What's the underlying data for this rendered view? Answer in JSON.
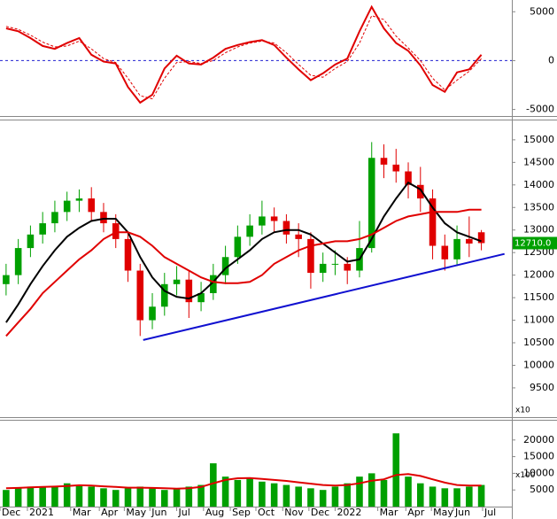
{
  "chart_data": [
    {
      "type": "oscillator",
      "x": [
        1,
        3,
        5,
        7,
        9,
        11,
        13,
        15,
        17,
        19,
        21,
        23,
        25,
        27,
        29,
        31,
        33,
        35,
        37,
        39,
        41,
        43,
        45,
        47,
        49,
        51,
        53,
        55,
        57,
        59,
        61,
        63,
        65,
        67,
        69,
        71,
        73,
        75,
        77,
        79
      ],
      "xlim": [
        0,
        84
      ],
      "ylim": [
        -5490,
        6020
      ],
      "yticks": [
        5000,
        0,
        -5000
      ],
      "zero_line": true,
      "zero_color": "#2020d0",
      "series": [
        {
          "color": "#e00000",
          "dashed": false,
          "values": [
            3300,
            3000,
            2300,
            1500,
            1200,
            1800,
            2300,
            600,
            -100,
            -300,
            -2700,
            -4300,
            -3500,
            -800,
            500,
            -300,
            -400,
            300,
            1200,
            1600,
            1900,
            2100,
            1600,
            300,
            -900,
            -2000,
            -1300,
            -400,
            200,
            3000,
            5500,
            3300,
            1800,
            1000,
            -500,
            -2500,
            -3200,
            -1200,
            -900,
            600
          ]
        },
        {
          "color": "#e00000",
          "dashed": true,
          "values": [
            3500,
            3200,
            2600,
            1900,
            1400,
            1500,
            2000,
            1200,
            200,
            -200,
            -1800,
            -3600,
            -3900,
            -1800,
            -200,
            -100,
            -300,
            0,
            800,
            1400,
            1800,
            2000,
            1800,
            800,
            -400,
            -1500,
            -1700,
            -800,
            -100,
            1800,
            4600,
            4200,
            2500,
            1300,
            0,
            -1800,
            -3000,
            -2000,
            -1100,
            200
          ]
        }
      ]
    },
    {
      "type": "candlestick",
      "x": [
        1,
        3,
        5,
        7,
        9,
        11,
        13,
        15,
        17,
        19,
        21,
        23,
        25,
        27,
        29,
        31,
        33,
        35,
        37,
        39,
        41,
        43,
        45,
        47,
        49,
        51,
        53,
        55,
        57,
        59,
        61,
        63,
        65,
        67,
        69,
        71,
        73,
        75,
        77,
        79
      ],
      "xlim": [
        0,
        84
      ],
      "ylim": [
        8870,
        15410
      ],
      "yticks": [
        15000,
        14500,
        14000,
        13500,
        13000,
        12500,
        12000,
        11500,
        11000,
        10500,
        10000,
        9500
      ],
      "scale_label": "x10",
      "up_color": "#00a000",
      "down_color": "#e00000",
      "open": [
        11800,
        12000,
        12600,
        12900,
        13150,
        13400,
        13650,
        13700,
        13400,
        13150,
        12800,
        12100,
        11000,
        11300,
        11800,
        11900,
        11400,
        11600,
        12000,
        12400,
        12850,
        13100,
        13300,
        13200,
        12900,
        12800,
        12050,
        12250,
        12250,
        12100,
        12600,
        14600,
        14450,
        14300,
        14000,
        13700,
        12650,
        12350,
        12800,
        12950
      ],
      "high": [
        12250,
        12800,
        13100,
        13400,
        13650,
        13850,
        13900,
        13950,
        13600,
        13350,
        12950,
        12250,
        11600,
        12050,
        12200,
        12100,
        11850,
        12250,
        12650,
        13100,
        13350,
        13650,
        13500,
        13350,
        13150,
        12950,
        12500,
        12550,
        12400,
        13200,
        14950,
        14900,
        14800,
        14500,
        14400,
        13900,
        12900,
        13100,
        13300,
        13000
      ],
      "low": [
        11550,
        11800,
        12400,
        12700,
        12950,
        13200,
        13400,
        13200,
        12950,
        12600,
        11850,
        10650,
        10800,
        11100,
        11550,
        11050,
        11200,
        11450,
        11800,
        12250,
        12650,
        12900,
        12950,
        12700,
        12400,
        11700,
        11850,
        12000,
        11800,
        11950,
        12500,
        14150,
        14050,
        13700,
        13400,
        12350,
        12100,
        12200,
        12400,
        12550
      ],
      "close": [
        12000,
        12600,
        12900,
        13150,
        13400,
        13650,
        13700,
        13400,
        13150,
        12800,
        12100,
        11000,
        11300,
        11800,
        11900,
        11400,
        11600,
        12000,
        12400,
        12850,
        13100,
        13300,
        13200,
        12900,
        12800,
        12050,
        12250,
        12250,
        12100,
        12600,
        14600,
        14450,
        14300,
        14000,
        13700,
        12650,
        12350,
        12800,
        12700,
        12710
      ],
      "lines": [
        {
          "color": "#000000",
          "values": [
            10950,
            11350,
            11800,
            12200,
            12550,
            12850,
            13050,
            13200,
            13250,
            13250,
            12950,
            12400,
            11950,
            11650,
            11520,
            11480,
            11600,
            11850,
            12150,
            12350,
            12550,
            12800,
            12950,
            13000,
            13000,
            12900,
            12700,
            12500,
            12300,
            12350,
            12800,
            13300,
            13700,
            14050,
            13900,
            13500,
            13150,
            12950,
            12850,
            12750
          ]
        },
        {
          "color": "#e00000",
          "values": [
            10650,
            10950,
            11250,
            11600,
            11850,
            12100,
            12350,
            12550,
            12800,
            12950,
            12950,
            12850,
            12650,
            12400,
            12250,
            12100,
            11950,
            11850,
            11820,
            11820,
            11850,
            12000,
            12250,
            12400,
            12550,
            12650,
            12700,
            12750,
            12750,
            12800,
            12900,
            13050,
            13200,
            13300,
            13350,
            13400,
            13400,
            13400,
            13450,
            13450
          ]
        }
      ],
      "trendline": {
        "color": "#1010d0",
        "x": [
          23.5,
          82.8
        ],
        "values": [
          10560,
          12470
        ]
      },
      "last_price": {
        "value": 12710,
        "label": "12710.0",
        "color": "#00a000"
      }
    },
    {
      "type": "volume",
      "x": [
        1,
        3,
        5,
        7,
        9,
        11,
        13,
        15,
        17,
        19,
        21,
        23,
        25,
        27,
        29,
        31,
        33,
        35,
        37,
        39,
        41,
        43,
        45,
        47,
        49,
        51,
        53,
        55,
        57,
        59,
        61,
        63,
        65,
        67,
        69,
        71,
        73,
        75,
        77,
        79
      ],
      "xlim": [
        0,
        84
      ],
      "ylim": [
        0,
        25000
      ],
      "yticks": [
        20000,
        15000,
        10000,
        5000
      ],
      "scale_label": "x100",
      "color": "#00a000",
      "ma_color": "#e00000",
      "values": [
        5000,
        5500,
        6000,
        5800,
        6200,
        7000,
        6500,
        6000,
        5500,
        5000,
        5500,
        6000,
        5500,
        5000,
        5200,
        6000,
        6500,
        13000,
        9000,
        8000,
        8500,
        7500,
        7000,
        6500,
        6000,
        5500,
        5000,
        6000,
        7000,
        9000,
        10000,
        8000,
        22000,
        9000,
        7000,
        6000,
        5500,
        5500,
        6000,
        6500
      ],
      "ma": [
        5500,
        5600,
        5800,
        5900,
        6000,
        6200,
        6400,
        6300,
        6100,
        5900,
        5700,
        5700,
        5600,
        5500,
        5400,
        5500,
        5900,
        7000,
        8000,
        8500,
        8600,
        8300,
        8000,
        7700,
        7300,
        6900,
        6500,
        6300,
        6500,
        7000,
        7800,
        8200,
        9500,
        9800,
        9200,
        8200,
        7200,
        6500,
        6300,
        6300
      ],
      "xticks": [
        {
          "value": 0,
          "label": "Dec"
        },
        {
          "value": 4.5,
          "label": "2021"
        },
        {
          "value": 11.6,
          "label": "Mar"
        },
        {
          "value": 16.3,
          "label": "Apr"
        },
        {
          "value": 20.4,
          "label": "May"
        },
        {
          "value": 24.6,
          "label": "Jun"
        },
        {
          "value": 29,
          "label": "Jul"
        },
        {
          "value": 33.4,
          "label": "Aug"
        },
        {
          "value": 37.8,
          "label": "Sep"
        },
        {
          "value": 42,
          "label": "Oct"
        },
        {
          "value": 46.4,
          "label": "Nov"
        },
        {
          "value": 50.7,
          "label": "Dec"
        },
        {
          "value": 55,
          "label": "2022"
        },
        {
          "value": 62,
          "label": "Mar"
        },
        {
          "value": 66.6,
          "label": "Apr"
        },
        {
          "value": 70.8,
          "label": "May"
        },
        {
          "value": 74.4,
          "label": "Jun"
        },
        {
          "value": 79.2,
          "label": "Jul"
        }
      ]
    }
  ]
}
